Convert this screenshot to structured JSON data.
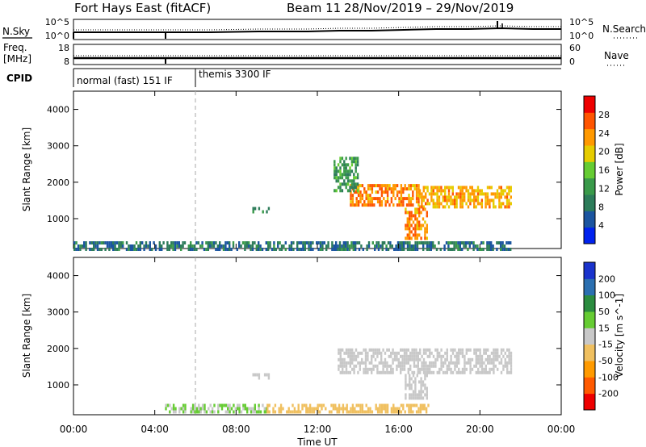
{
  "header": {
    "station": "Fort Hays East (fitACF)",
    "beam": "Beam 11",
    "date_range": "28/Nov/2019 – 29/Nov/2019"
  },
  "top_panels": {
    "nsky_label": "N.Sky",
    "nsearch_label": "N.Search",
    "freq_label_line1": "Freq.",
    "freq_label_line2": "[MHz]",
    "nave_label": "Nave",
    "cpid_label": "CPID",
    "noise_left_ticks": [
      "10^5",
      "10^0"
    ],
    "noise_right_ticks": [
      "10^5",
      "10^0"
    ],
    "freq_left_ticks": [
      "18",
      "8"
    ],
    "freq_right_ticks": [
      "60",
      "0"
    ],
    "cpid_segments": [
      {
        "label": "normal (fast) 151 IF",
        "start_hour": 0,
        "end_hour": 6
      },
      {
        "label": "themis 3300 IF",
        "start_hour": 6,
        "end_hour": 24
      }
    ]
  },
  "x_axis": {
    "label": "Time UT",
    "ticks": [
      "00:00",
      "04:00",
      "08:00",
      "12:00",
      "16:00",
      "20:00",
      "00:00"
    ]
  },
  "colors": {
    "power_scale": [
      "#0022ee",
      "#1b55a0",
      "#2d7c5a",
      "#3a9a4a",
      "#66cc33",
      "#e6cc00",
      "#ff9900",
      "#ff5500",
      "#ee0000"
    ],
    "velocity_scale": [
      "#ee0000",
      "#ff5a00",
      "#ff9a00",
      "#f0c060",
      "#c8c8c8",
      "#66cc33",
      "#2b8c3f",
      "#2b6fb0",
      "#1a33cc"
    ],
    "ground_scatter": "#c8c8c8"
  },
  "chart_data": [
    {
      "type": "heatmap",
      "name": "power-panel",
      "ylabel": "Slant Range [km]",
      "xlabel": "Time UT",
      "x_range_hours": [
        0,
        24
      ],
      "ylim": [
        180,
        4500
      ],
      "y_ticks": [
        "1000",
        "2000",
        "3000",
        "4000"
      ],
      "colorbar": {
        "label": "Power [dB]",
        "ticks": [
          "4",
          "8",
          "12",
          "16",
          "20",
          "24",
          "28"
        ],
        "range": [
          0,
          32
        ]
      },
      "bands": [
        {
          "hours": [
            0,
            21.5
          ],
          "km": [
            200,
            380
          ],
          "value": 8
        },
        {
          "hours": [
            8.8,
            9.6
          ],
          "km": [
            1150,
            1320
          ],
          "value": 10
        },
        {
          "hours": [
            13.6,
            17.0
          ],
          "km": [
            1350,
            1950
          ],
          "value": 24
        },
        {
          "hours": [
            17.0,
            21.5
          ],
          "km": [
            1350,
            1900
          ],
          "value": 22
        },
        {
          "hours": [
            16.3,
            17.4
          ],
          "km": [
            500,
            1300
          ],
          "value": 24
        },
        {
          "hours": [
            12.8,
            14.0
          ],
          "km": [
            1800,
            2700
          ],
          "value": 12
        }
      ]
    },
    {
      "type": "heatmap",
      "name": "velocity-panel",
      "ylabel": "Slant Range [km]",
      "xlabel": "Time UT",
      "x_range_hours": [
        0,
        24
      ],
      "ylim": [
        180,
        4500
      ],
      "y_ticks": [
        "1000",
        "2000",
        "3000",
        "4000"
      ],
      "colorbar": {
        "label": "Velocity [m s^-1]",
        "ticks": [
          "200",
          "100",
          "50",
          "15",
          "-15",
          "-50",
          "-100",
          "-200"
        ],
        "range": [
          -250,
          250
        ]
      },
      "bands": [
        {
          "hours": [
            4.5,
            9.5
          ],
          "km": [
            250,
            480
          ],
          "value": 30
        },
        {
          "hours": [
            9.5,
            17.5
          ],
          "km": [
            220,
            480
          ],
          "value": -60
        },
        {
          "hours": [
            8.8,
            9.6
          ],
          "km": [
            1150,
            1320
          ],
          "value": 0
        },
        {
          "hours": [
            13.0,
            21.5
          ],
          "km": [
            1350,
            2000
          ],
          "value": 0
        },
        {
          "hours": [
            16.3,
            17.4
          ],
          "km": [
            600,
            1300
          ],
          "value": 0
        }
      ]
    }
  ]
}
